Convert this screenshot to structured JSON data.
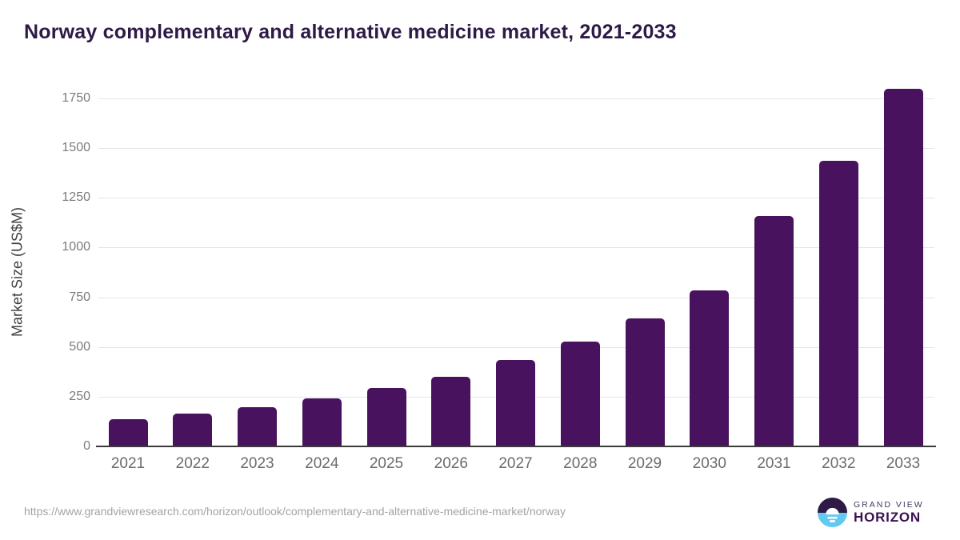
{
  "title": "Norway complementary and alternative medicine market, 2021-2033",
  "chart_data": {
    "type": "bar",
    "title": "Norway complementary and alternative medicine market, 2021-2033",
    "categories": [
      "2021",
      "2022",
      "2023",
      "2024",
      "2025",
      "2026",
      "2027",
      "2028",
      "2029",
      "2030",
      "2031",
      "2032",
      "2033"
    ],
    "values": [
      137,
      165,
      197,
      241,
      293,
      352,
      434,
      527,
      644,
      785,
      1158,
      1436,
      1800
    ],
    "xlabel": "",
    "ylabel": "Market Size (US$M)",
    "ylim": [
      0,
      1810
    ],
    "yticks": [
      0,
      250,
      500,
      750,
      1000,
      1250,
      1500,
      1750
    ],
    "grid": true,
    "legend": false,
    "bar_color": "#48125e",
    "gridline_color": "#e5e5e5",
    "axis_line_color": "#3a3a3a"
  },
  "colors": {
    "title_text": "#2e1a47",
    "bar": "#48125e",
    "tick_text": "#7b7b7b",
    "x_tick_text": "#6b6b6b",
    "logo_blue": "#62c9f0",
    "logo_purple": "#2e1a47"
  },
  "footer": {
    "source_url": "https://www.grandviewresearch.com/horizon/outlook/complementary-and-alternative-medicine-market/norway",
    "logo": {
      "top_text": "GRAND VIEW",
      "bottom_text": "HORIZON"
    }
  }
}
